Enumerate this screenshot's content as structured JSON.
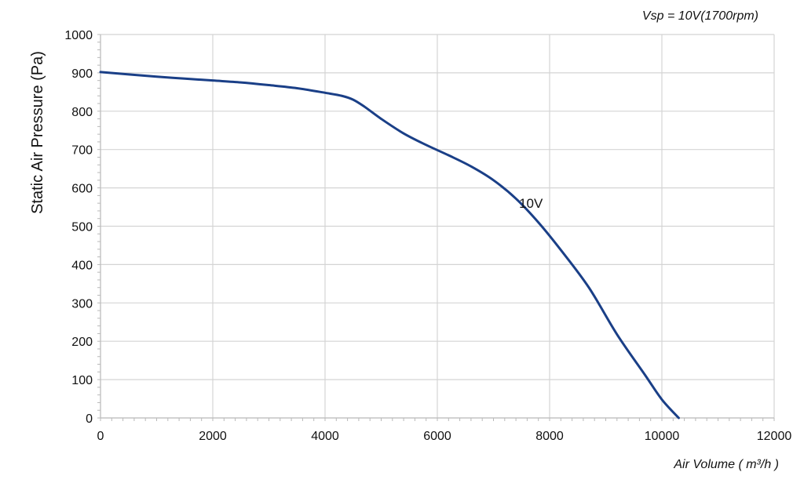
{
  "chart_data": {
    "type": "line",
    "title": "Vsp = 10V(1700rpm)",
    "xlabel": "Air Volume ( m³/h )",
    "ylabel": "Static Air Pressure  (Pa)",
    "xlim": [
      0,
      12000
    ],
    "ylim": [
      0,
      1000
    ],
    "x_ticks": [
      "0",
      "2000",
      "4000",
      "6000",
      "8000",
      "10000",
      "12000"
    ],
    "y_ticks": [
      "0",
      "100",
      "200",
      "300",
      "400",
      "500",
      "600",
      "700",
      "800",
      "900",
      "1000"
    ],
    "grid": true,
    "series": [
      {
        "name": "10V",
        "color": "#1a3f87",
        "x": [
          0,
          500,
          1000,
          1500,
          2000,
          2500,
          3000,
          3500,
          4000,
          4300,
          4500,
          4700,
          5000,
          5400,
          5800,
          6200,
          6600,
          7000,
          7400,
          7800,
          8200,
          8700,
          9200,
          9700,
          10000,
          10300
        ],
        "y": [
          902,
          896,
          890,
          885,
          880,
          875,
          868,
          860,
          848,
          840,
          830,
          812,
          780,
          742,
          712,
          685,
          656,
          620,
          572,
          510,
          438,
          340,
          218,
          112,
          48,
          0
        ]
      }
    ],
    "annotations": [
      {
        "text": "10V",
        "x": 7400,
        "y": 560
      }
    ]
  }
}
